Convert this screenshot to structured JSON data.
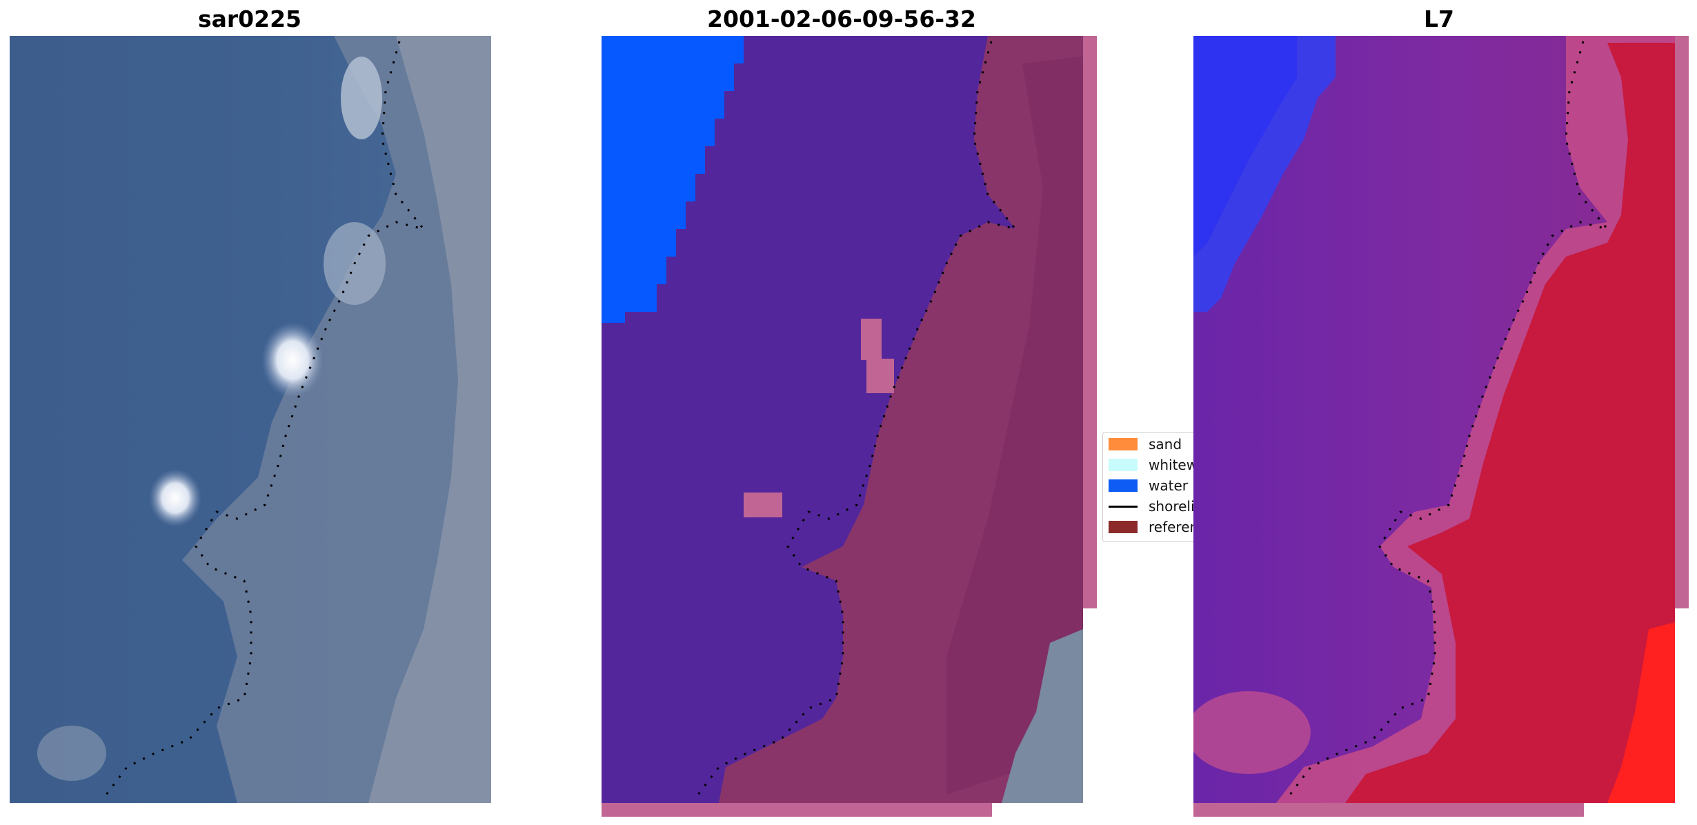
{
  "figure": {
    "panels": [
      {
        "id": "rgb",
        "title": "sar0225"
      },
      {
        "id": "classified",
        "title": "2001-02-06-09-56-32"
      },
      {
        "id": "index",
        "title": "L7"
      }
    ]
  },
  "legend": {
    "items": [
      {
        "label": "sand",
        "color": "#ff8c3a",
        "kind": "patch"
      },
      {
        "label": "whitewater",
        "color": "#c8fbfb",
        "kind": "patch"
      },
      {
        "label": "water",
        "color": "#0f5cf5",
        "kind": "patch"
      },
      {
        "label": "shoreline",
        "color": "#000000",
        "kind": "line"
      },
      {
        "label": "reference",
        "color": "#8c2a2a",
        "kind": "patch"
      }
    ]
  },
  "colors": {
    "rgb_water": "#3e5f8e",
    "rgb_land": "#8a95a8",
    "class_water_body": "#54269b",
    "class_sea_water": "#0559fe",
    "class_land": "#8a3569",
    "class_edge": "#c06594",
    "index_water": "#7a22a6",
    "index_land": "#c8193e",
    "index_blue": "#3030f0",
    "shoreline": "#000000"
  }
}
